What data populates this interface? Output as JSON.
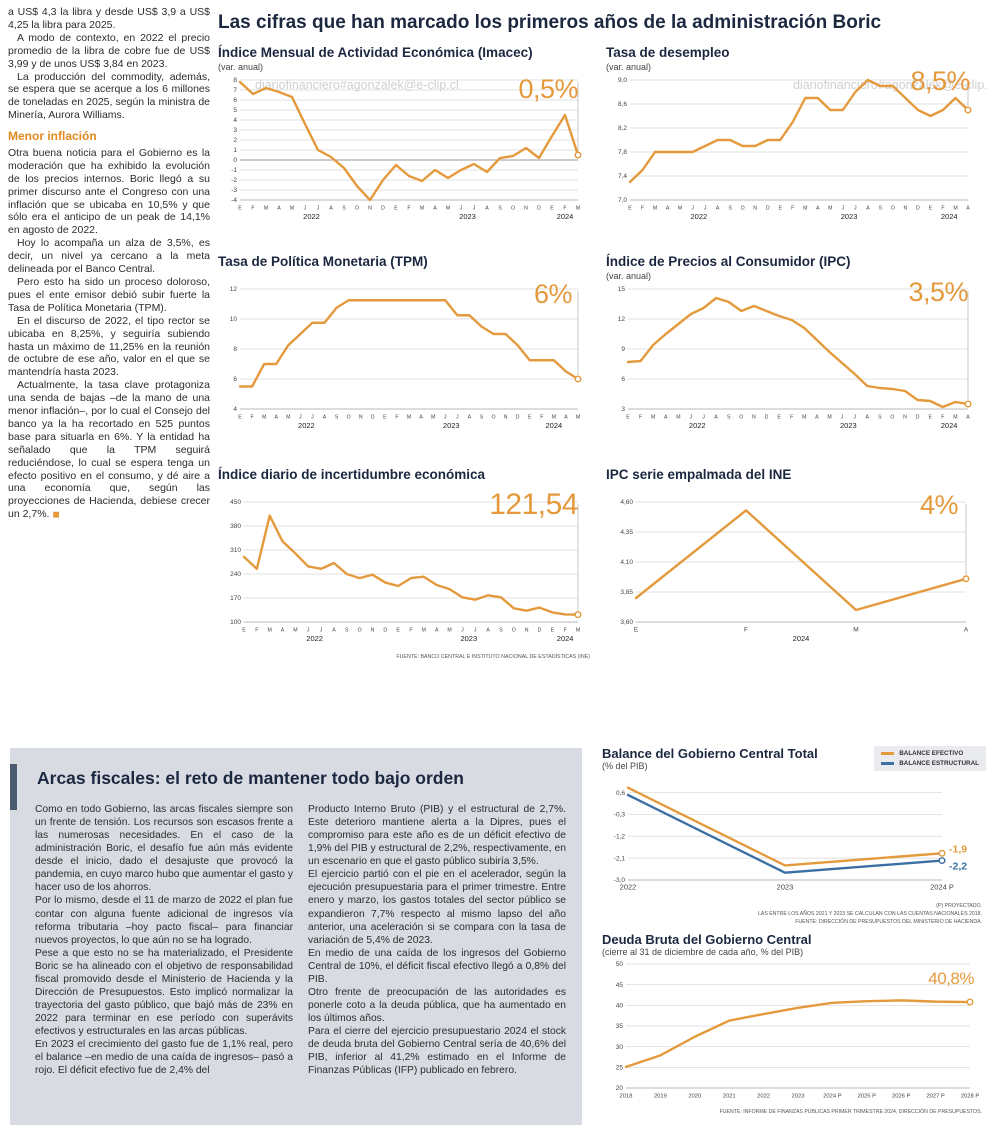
{
  "watermark": "diariofinanciero#agonzalek@e-clip.cl",
  "colors": {
    "orange": "#E49A3C",
    "blue": "#3C70A4",
    "navy": "#1c2740",
    "box_bg": "#d8dce2"
  },
  "left_column": {
    "paras_top": [
      "a US$ 4,3 la libra y desde US$ 3,9 a US$ 4,25 la libra para 2025.",
      "A modo de contexto, en 2022 el precio promedio de la libra de cobre fue de US$ 3,99 y de unos US$ 3,84 en 2023.",
      "La producción del commodity, además, se espera que se acerque a los 6 millones de toneladas en 2025, según la ministra de Minería, Aurora Williams."
    ],
    "heading": "Menor inflación",
    "paras": [
      "Otra buena noticia para el Gobierno es la moderación que ha exhibido la evolución de los precios internos. Boric llegó a su primer discurso ante el Congreso con una inflación que se ubicaba en 10,5% y que sólo era el anticipo de un peak de 14,1% en agosto de 2022.",
      "Hoy lo acompaña un alza de 3,5%, es decir, un nivel ya cercano a la meta delineada por el Banco Central.",
      "Pero esto ha sido un proceso doloroso, pues el ente emisor debió subir fuerte la Tasa de Política Monetaria (TPM).",
      "En el discurso de 2022, el tipo rector se ubicaba en 8,25%, y seguiría subiendo hasta un máximo de 11,25% en la reunión de octubre de ese año, valor en el que se mantendría hasta 2023.",
      "Actualmente, la tasa clave protagoniza una senda de bajas –de la mano de una menor inflación–, por lo cual el Consejo del banco ya la ha recortado en 525 puntos base para situarla en 6%. Y la entidad ha señalado que la TPM seguirá reduciéndose, lo cual se espera tenga un efecto positivo en el consumo, y dé aire a una economía que, según las proyecciones de Hacienda, debiese crecer un 2,7%."
    ]
  },
  "main": {
    "title": "Las cifras que han marcado los primeros años de la administración Boric",
    "source": "FUENTE: BANCO CENTRAL E INSTITUTO NACIONAL DE ESTADÍSTICAS (INE)"
  },
  "chart_data": [
    {
      "type": "line",
      "title": "Índice Mensual de Actividad Económica (Imacec)",
      "subtitle": "(var. anual)",
      "annotation": "0,5%",
      "ylim": [
        -4,
        8
      ],
      "yticks": [
        [
          8,
          "8"
        ],
        [
          7,
          "7"
        ],
        [
          6,
          "6"
        ],
        [
          5,
          "5"
        ],
        [
          4,
          "4"
        ],
        [
          3,
          "3"
        ],
        [
          2,
          "2"
        ],
        [
          1,
          "1"
        ],
        [
          0,
          "0",
          1
        ],
        [
          -1,
          "-1"
        ],
        [
          -2,
          "-2"
        ],
        [
          -3,
          "-3"
        ],
        [
          -4,
          "-4"
        ]
      ],
      "xlabels": "EFMAMJJASONDEFMAMJJASONDEFM",
      "years": [
        [
          "2022",
          0,
          11
        ],
        [
          "2023",
          12,
          23
        ],
        [
          "2024",
          24,
          26
        ]
      ],
      "drop": true,
      "series": [
        {
          "name": "Imacec",
          "color": "#E49A3C",
          "values": [
            7.8,
            6.6,
            7.2,
            6.8,
            6.3,
            3.6,
            1.0,
            0.3,
            -0.8,
            -2.6,
            -4.0,
            -2.0,
            -0.5,
            -1.6,
            -2.1,
            -1.0,
            -1.8,
            -1.0,
            -0.4,
            -1.2,
            0.2,
            0.4,
            1.2,
            0.2,
            2.4,
            4.5,
            0.5
          ]
        }
      ]
    },
    {
      "type": "line",
      "title": "Tasa de desempleo",
      "subtitle": "(var. anual)",
      "annotation": "8,5%",
      "ylim": [
        7.0,
        9.0
      ],
      "yticks": [
        [
          9.0,
          "9,0"
        ],
        [
          8.6,
          "8,6"
        ],
        [
          8.2,
          "8,2"
        ],
        [
          7.8,
          "7,8"
        ],
        [
          7.4,
          "7,4"
        ],
        [
          7.0,
          "7,0"
        ]
      ],
      "xlabels": "EFMAMJJASONDEFMAMJJASONDEFMA",
      "years": [
        [
          "2022",
          0,
          11
        ],
        [
          "2023",
          12,
          23
        ],
        [
          "2024",
          24,
          27
        ]
      ],
      "drop": true,
      "series": [
        {
          "name": "Desempleo",
          "color": "#E49A3C",
          "values": [
            7.3,
            7.5,
            7.8,
            7.8,
            7.8,
            7.8,
            7.9,
            8.0,
            8.0,
            7.9,
            7.9,
            8.0,
            8.0,
            8.3,
            8.7,
            8.7,
            8.5,
            8.5,
            8.8,
            9.0,
            8.9,
            8.9,
            8.7,
            8.5,
            8.4,
            8.5,
            8.7,
            8.5
          ]
        }
      ]
    },
    {
      "type": "line",
      "title": "Tasa de Política Monetaria (TPM)",
      "subtitle": "",
      "annotation": "6%",
      "ylim": [
        4,
        12
      ],
      "yticks": [
        [
          12,
          "12"
        ],
        [
          10,
          "10"
        ],
        [
          8,
          "8"
        ],
        [
          6,
          "6"
        ],
        [
          4,
          "4"
        ]
      ],
      "xlabels": "EFMAMJJASONDEFMAMJJASONDEFMAM",
      "years": [
        [
          "2022",
          0,
          11
        ],
        [
          "2023",
          12,
          23
        ],
        [
          "2024",
          24,
          28
        ]
      ],
      "drop": true,
      "series": [
        {
          "name": "TPM",
          "color": "#E49A3C",
          "values": [
            5.5,
            5.5,
            7.0,
            7.0,
            8.25,
            9.0,
            9.75,
            9.75,
            10.75,
            11.25,
            11.25,
            11.25,
            11.25,
            11.25,
            11.25,
            11.25,
            11.25,
            11.25,
            10.25,
            10.25,
            9.5,
            9.0,
            9.0,
            8.25,
            7.25,
            7.25,
            7.25,
            6.5,
            6.0
          ]
        }
      ]
    },
    {
      "type": "line",
      "title": "Índice de Precios al Consumidor (IPC)",
      "subtitle": "(var. anual)",
      "annotation": "3,5%",
      "ylim": [
        3,
        15
      ],
      "yticks": [
        [
          15,
          "15"
        ],
        [
          12,
          "12"
        ],
        [
          9,
          "9"
        ],
        [
          6,
          "6"
        ],
        [
          3,
          "3"
        ]
      ],
      "xlabels": "EFMAMJJASONDEFMAMJJASONDEFMA",
      "years": [
        [
          "2022",
          0,
          11
        ],
        [
          "2023",
          12,
          23
        ],
        [
          "2024",
          24,
          27
        ]
      ],
      "drop": true,
      "series": [
        {
          "name": "IPC",
          "color": "#E49A3C",
          "values": [
            7.7,
            7.8,
            9.4,
            10.5,
            11.5,
            12.5,
            13.1,
            14.1,
            13.7,
            12.8,
            13.3,
            12.8,
            12.3,
            11.9,
            11.1,
            9.9,
            8.7,
            7.6,
            6.5,
            5.3,
            5.1,
            5.0,
            4.8,
            3.9,
            3.8,
            3.2,
            3.7,
            3.5
          ]
        }
      ]
    },
    {
      "type": "line",
      "title": "Índice diario de incertidumbre económica",
      "subtitle": "",
      "annotation": "121,54",
      "ylim": [
        100,
        450
      ],
      "yticks": [
        [
          450,
          "450"
        ],
        [
          380,
          "380"
        ],
        [
          310,
          "310"
        ],
        [
          240,
          "240"
        ],
        [
          170,
          "170"
        ],
        [
          100,
          "100"
        ]
      ],
      "xlabels": "EFMAMJJASONDEFMAMJJASONDEFM",
      "years": [
        [
          "2022",
          0,
          11
        ],
        [
          "2023",
          12,
          23
        ],
        [
          "2024",
          24,
          26
        ]
      ],
      "drop": true,
      "series": [
        {
          "name": "Incertidumbre",
          "color": "#E49A3C",
          "values": [
            290,
            255,
            410,
            335,
            300,
            262,
            255,
            272,
            240,
            228,
            238,
            215,
            205,
            228,
            232,
            208,
            196,
            172,
            165,
            178,
            172,
            140,
            133,
            142,
            128,
            122,
            121.54
          ]
        }
      ]
    },
    {
      "type": "line",
      "title": "IPC serie empalmada del INE",
      "subtitle": "",
      "annotation": "4%",
      "ylim": [
        3.6,
        4.6
      ],
      "yticks": [
        [
          4.6,
          "4,60"
        ],
        [
          4.35,
          "4,35"
        ],
        [
          4.1,
          "4,10"
        ],
        [
          3.85,
          "3,85"
        ],
        [
          3.6,
          "3,60"
        ]
      ],
      "xlabels": [
        "E",
        "F",
        "M",
        "A"
      ],
      "years": [
        [
          "2024",
          0,
          3
        ]
      ],
      "drop": true,
      "series": [
        {
          "name": "IPC INE",
          "color": "#E49A3C",
          "values": [
            3.8,
            4.53,
            3.7,
            3.96
          ]
        }
      ]
    },
    {
      "type": "line",
      "title": "Balance del Gobierno Central Total",
      "subtitle": "(% del PIB)",
      "ylim": [
        -3.0,
        1.2
      ],
      "yticks": [
        [
          0.6,
          "0,6"
        ],
        [
          -0.3,
          "-0,3"
        ],
        [
          -1.2,
          "-1,2"
        ],
        [
          -2.1,
          "-2,1"
        ],
        [
          -3.0,
          "-3,0"
        ]
      ],
      "xlabels": [
        "2022",
        "2023",
        "2024 P"
      ],
      "series": [
        {
          "name": "BALANCE EFECTIVO",
          "color": "#E49A3C",
          "values": [
            0.8,
            -2.4,
            -1.9
          ],
          "end_label": "-1,9",
          "ldy": -1
        },
        {
          "name": "BALANCE ESTRUCTURAL",
          "color": "#3C70A4",
          "values": [
            0.5,
            -2.7,
            -2.2
          ],
          "end_label": "-2,2",
          "ldy": 9
        }
      ]
    },
    {
      "type": "line",
      "title": "Deuda Bruta del Gobierno Central",
      "subtitle": "(cierre al 31 de diciembre de cada año, % del PIB)",
      "annotation": "40,8%",
      "source": "FUENTE: INFORME DE FINANZAS PÚBLICAS PRIMER TRIMESTRE 2024, DIRECCIÓN DE PRESUPUESTOS.",
      "ylim": [
        20,
        50
      ],
      "yticks": [
        [
          50,
          "50"
        ],
        [
          45,
          "45"
        ],
        [
          40,
          "40"
        ],
        [
          35,
          "35"
        ],
        [
          30,
          "30"
        ],
        [
          25,
          "25"
        ],
        [
          20,
          "20"
        ]
      ],
      "xlabels": [
        "2018",
        "2019",
        "2020",
        "2021",
        "2022",
        "2023",
        "2024 P",
        "2025 P",
        "2026 P",
        "2027 P",
        "2028 P"
      ],
      "series": [
        {
          "name": "Deuda bruta",
          "color": "#E49A3C",
          "values": [
            25.1,
            27.9,
            32.4,
            36.3,
            37.9,
            39.4,
            40.6,
            41.0,
            41.2,
            40.9,
            40.8
          ]
        }
      ]
    }
  ],
  "fiscal_box": {
    "title": "Arcas fiscales: el reto de mantener todo bajo orden",
    "col1": [
      "Como en todo Gobierno, las arcas fiscales siempre son un frente de tensión. Los recursos son escasos frente a las numerosas necesidades. En el caso de la administración Boric, el desafío fue aún más evidente desde el inicio, dado el desajuste que provocó la pandemia, en cuyo marco hubo que aumentar el gasto y hacer uso de los ahorros.",
      "Por lo mismo, desde el 11 de marzo de 2022 el plan fue contar con alguna fuente adicional de ingresos vía reforma tributaria –hoy pacto fiscal– para financiar nuevos proyectos, lo que aún no se ha logrado.",
      "Pese a que esto no se ha materializado, el Presidente Boric se ha alineado con el objetivo de responsabilidad fiscal promovido desde el Ministerio de Hacienda y la Dirección de Presupuestos. Esto implicó normalizar la trayectoria del gasto público, que bajó más de 23% en 2022 para terminar en ese período con superávits efectivos y estructurales en las arcas públicas.",
      "En 2023 el crecimiento del gasto fue de 1,1% real, pero el balance –en medio de una caída de ingresos– pasó a rojo. El déficit efectivo fue de 2,4% del"
    ],
    "col2": [
      "Producto Interno Bruto (PIB) y el estructural de 2,7%. Este deterioro mantiene alerta a la Dipres, pues el compromiso para este año es de un déficit efectivo de 1,9% del PIB y estructural de 2,2%, respectivamente, en un escenario en que el gasto público subiría 3,5%.",
      "El ejercicio partió con el pie en el acelerador, según la ejecución presupuestaria para el primer trimestre. Entre enero y marzo, los gastos totales del sector público se expandieron 7,7% respecto al mismo lapso del año anterior, una aceleración si se compara con la tasa de variación de 5,4% de 2023.",
      "En medio de una caída de los ingresos del Gobierno Central de 10%, el déficit fiscal efectivo llegó a 0,8% del PIB.",
      "Otro frente de preocupación de las autoridades es ponerle coto a la deuda pública, que ha aumentado en los últimos años.",
      "Para el cierre del ejercicio presupuestario 2024 el stock de deuda bruta del Gobierno Central sería de 40,6% del PIB, inferior al 41,2% estimado en el Informe de Finanzas Públicas (IFP) publicado en febrero."
    ]
  },
  "fiscal_notes": [
    "(P) PROYECTADO.",
    "LAS ENTRE LOS AÑOS 2021 Y 2023 SE CALCULAN CON LAS CUENTAS NACIONALES 2018.",
    "FUENTE: DIRECCIÓN DE PRESUPUESTOS DEL MINISTERIO DE HACIENDA."
  ]
}
